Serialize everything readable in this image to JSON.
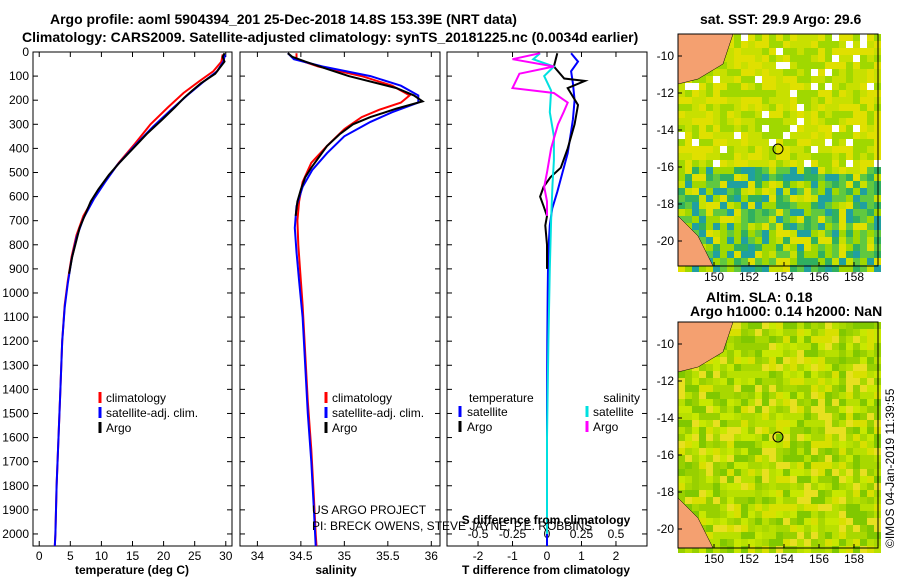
{
  "title_line1": "Argo profile: aoml 5904394_201 25-Dec-2018 14.8S 153.39E (NRT data)",
  "title_line2": "Climatology: CARS2009. Satellite-adjusted climatology: synTS_20181225.nc (0.0034d earlier)",
  "colors": {
    "climatology": "#ff0000",
    "satellite": "#0000ff",
    "argo": "#000000",
    "cyan": "#00e0e0",
    "magenta": "#ff00ff"
  },
  "chart_data": [
    {
      "type": "line",
      "id": "temperature",
      "xlabel": "temperature (deg C)",
      "xlim": [
        -1,
        31
      ],
      "xticks": [
        0,
        5,
        10,
        15,
        20,
        25,
        30
      ],
      "ylim": [
        2050,
        0
      ],
      "yticks": [
        0,
        100,
        200,
        300,
        400,
        500,
        600,
        700,
        800,
        900,
        1000,
        1100,
        1200,
        1300,
        1400,
        1500,
        1600,
        1700,
        1800,
        1900,
        2000
      ],
      "legend": [
        "climatology",
        "satellite-adj. clim.",
        "Argo"
      ],
      "series": [
        {
          "name": "climatology",
          "color": "#ff0000",
          "points": [
            [
              29.5,
              10
            ],
            [
              29.3,
              40
            ],
            [
              28.0,
              80
            ],
            [
              25.8,
              120
            ],
            [
              23.2,
              170
            ],
            [
              20.7,
              230
            ],
            [
              17.9,
              300
            ],
            [
              15.4,
              380
            ],
            [
              12.8,
              460
            ],
            [
              10.8,
              530
            ],
            [
              8.9,
              600
            ],
            [
              7.1,
              680
            ],
            [
              6.0,
              760
            ],
            [
              5.2,
              850
            ],
            [
              4.6,
              950
            ],
            [
              4.1,
              1050
            ],
            [
              3.7,
              1200
            ],
            [
              3.4,
              1400
            ],
            [
              3.1,
              1600
            ],
            [
              2.8,
              1800
            ],
            [
              2.6,
              2000
            ],
            [
              2.5,
              2050
            ]
          ]
        },
        {
          "name": "satellite-adj. clim.",
          "color": "#0000ff",
          "points": [
            [
              29.9,
              10
            ],
            [
              29.6,
              40
            ],
            [
              28.6,
              80
            ],
            [
              26.6,
              120
            ],
            [
              23.8,
              180
            ],
            [
              21.2,
              240
            ],
            [
              18.3,
              310
            ],
            [
              15.3,
              390
            ],
            [
              12.5,
              470
            ],
            [
              10.6,
              540
            ],
            [
              8.8,
              610
            ],
            [
              7.1,
              690
            ],
            [
              6.0,
              770
            ],
            [
              5.2,
              860
            ],
            [
              4.6,
              960
            ],
            [
              4.1,
              1060
            ],
            [
              3.7,
              1200
            ],
            [
              3.4,
              1400
            ],
            [
              3.1,
              1600
            ],
            [
              2.8,
              1800
            ],
            [
              2.6,
              2000
            ],
            [
              2.5,
              2050
            ]
          ]
        },
        {
          "name": "Argo",
          "color": "#000000",
          "points": [
            [
              29.8,
              5
            ],
            [
              29.5,
              20
            ],
            [
              29.8,
              40
            ],
            [
              28.3,
              90
            ],
            [
              26.0,
              130
            ],
            [
              24.6,
              160
            ],
            [
              23.3,
              190
            ],
            [
              21.8,
              230
            ],
            [
              19.8,
              280
            ],
            [
              17.3,
              340
            ],
            [
              15.1,
              400
            ],
            [
              12.9,
              460
            ],
            [
              11.2,
              510
            ],
            [
              9.5,
              570
            ],
            [
              8.3,
              620
            ],
            [
              7.3,
              680
            ],
            [
              6.5,
              730
            ],
            [
              5.9,
              790
            ],
            [
              5.3,
              850
            ],
            [
              4.8,
              920
            ]
          ]
        }
      ]
    },
    {
      "type": "line",
      "id": "salinity",
      "xlabel": "salinity",
      "xlim": [
        33.8,
        36.1
      ],
      "xticks": [
        34,
        34.5,
        35,
        35.5,
        36
      ],
      "ylim": [
        2050,
        0
      ],
      "legend": [
        "climatology",
        "satellite-adj. clim.",
        "Argo"
      ],
      "series": [
        {
          "name": "climatology",
          "color": "#ff0000",
          "points": [
            [
              34.45,
              5
            ],
            [
              34.45,
              30
            ],
            [
              34.7,
              60
            ],
            [
              35.2,
              100
            ],
            [
              35.55,
              140
            ],
            [
              35.75,
              180
            ],
            [
              35.65,
              210
            ],
            [
              35.4,
              240
            ],
            [
              35.2,
              270
            ],
            [
              35.0,
              320
            ],
            [
              34.8,
              390
            ],
            [
              34.62,
              460
            ],
            [
              34.52,
              540
            ],
            [
              34.48,
              620
            ],
            [
              34.46,
              700
            ],
            [
              34.47,
              800
            ],
            [
              34.49,
              900
            ],
            [
              34.52,
              1050
            ],
            [
              34.55,
              1250
            ],
            [
              34.58,
              1450
            ],
            [
              34.62,
              1650
            ],
            [
              34.65,
              1850
            ],
            [
              34.67,
              2000
            ],
            [
              34.68,
              2050
            ]
          ]
        },
        {
          "name": "satellite-adj. clim.",
          "color": "#0000ff",
          "points": [
            [
              34.35,
              5
            ],
            [
              34.42,
              30
            ],
            [
              34.75,
              60
            ],
            [
              35.3,
              100
            ],
            [
              35.65,
              140
            ],
            [
              35.85,
              180
            ],
            [
              35.85,
              210
            ],
            [
              35.55,
              250
            ],
            [
              35.3,
              290
            ],
            [
              35.0,
              350
            ],
            [
              34.8,
              420
            ],
            [
              34.63,
              490
            ],
            [
              34.52,
              560
            ],
            [
              34.45,
              640
            ],
            [
              34.43,
              730
            ],
            [
              34.45,
              830
            ],
            [
              34.48,
              950
            ],
            [
              34.52,
              1100
            ],
            [
              34.55,
              1300
            ],
            [
              34.58,
              1500
            ],
            [
              34.62,
              1700
            ],
            [
              34.65,
              1900
            ],
            [
              34.67,
              2050
            ]
          ]
        },
        {
          "name": "Argo",
          "color": "#000000",
          "points": [
            [
              34.35,
              5
            ],
            [
              34.4,
              20
            ],
            [
              34.55,
              40
            ],
            [
              34.8,
              70
            ],
            [
              35.05,
              100
            ],
            [
              35.6,
              150
            ],
            [
              35.8,
              180
            ],
            [
              35.9,
              205
            ],
            [
              35.6,
              235
            ],
            [
              35.3,
              270
            ],
            [
              35.1,
              300
            ],
            [
              34.95,
              340
            ],
            [
              34.8,
              390
            ],
            [
              34.7,
              440
            ],
            [
              34.62,
              480
            ],
            [
              34.55,
              520
            ],
            [
              34.5,
              570
            ],
            [
              34.46,
              620
            ],
            [
              34.44,
              680
            ]
          ]
        }
      ]
    },
    {
      "type": "line",
      "id": "difference",
      "xlabel": "T difference from climatology",
      "xlabel2": "S difference from climatology",
      "xlim": [
        -2.9,
        2.9
      ],
      "xticks": [
        -2,
        -1,
        0,
        1,
        2
      ],
      "xticks_top": [
        -0.5,
        -0.25,
        0,
        0.25,
        0.5
      ],
      "xticklabels_top": [
        "-0.5",
        "-0.25",
        "0",
        "0.25",
        "0.5"
      ],
      "ylim": [
        2050,
        0
      ],
      "legend_left_title": "temperature",
      "legend_right_title": "salinity",
      "legend_left": [
        "satellite",
        "Argo"
      ],
      "legend_right": [
        "satellite",
        "Argo"
      ],
      "series": [
        {
          "name": "T satellite",
          "color": "#0000ff",
          "points": [
            [
              0.7,
              5
            ],
            [
              0.9,
              40
            ],
            [
              0.7,
              80
            ],
            [
              0.75,
              130
            ],
            [
              0.8,
              200
            ],
            [
              0.75,
              280
            ],
            [
              0.7,
              330
            ],
            [
              0.6,
              420
            ],
            [
              0.45,
              500
            ],
            [
              0.3,
              580
            ],
            [
              0.15,
              650
            ],
            [
              0.08,
              720
            ],
            [
              0.05,
              800
            ],
            [
              0.03,
              900
            ],
            [
              0.02,
              1000
            ],
            [
              0.01,
              1200
            ],
            [
              0.0,
              1500
            ],
            [
              0.0,
              2050
            ]
          ]
        },
        {
          "name": "T Argo",
          "color": "#000000",
          "points": [
            [
              0.3,
              5
            ],
            [
              0.2,
              60
            ],
            [
              0.5,
              110
            ],
            [
              1.1,
              120
            ],
            [
              0.6,
              150
            ],
            [
              0.9,
              220
            ],
            [
              0.8,
              300
            ],
            [
              0.6,
              400
            ],
            [
              0.4,
              480
            ],
            [
              0.1,
              520
            ],
            [
              -0.1,
              560
            ],
            [
              -0.2,
              600
            ],
            [
              -0.1,
              640
            ],
            [
              0.0,
              680
            ],
            [
              -0.05,
              720
            ],
            [
              0.0,
              800
            ],
            [
              0.0,
              900
            ]
          ]
        },
        {
          "name": "S satellite",
          "color": "#00e0e0",
          "points": [
            [
              -0.05,
              5
            ],
            [
              -0.1,
              30
            ],
            [
              0.05,
              60
            ],
            [
              -0.02,
              100
            ],
            [
              0.03,
              160
            ],
            [
              0.02,
              250
            ],
            [
              0.05,
              350
            ],
            [
              0.05,
              450
            ],
            [
              0.04,
              550
            ],
            [
              0.03,
              700
            ],
            [
              0.02,
              900
            ],
            [
              0.01,
              1200
            ],
            [
              0.0,
              1600
            ],
            [
              0.0,
              2000
            ]
          ]
        },
        {
          "name": "S Argo",
          "color": "#ff00ff",
          "points": [
            [
              -0.05,
              5
            ],
            [
              -0.25,
              30
            ],
            [
              0.05,
              60
            ],
            [
              -0.2,
              90
            ],
            [
              -0.25,
              150
            ],
            [
              0.05,
              170
            ],
            [
              0.15,
              210
            ],
            [
              0.12,
              250
            ],
            [
              0.08,
              300
            ],
            [
              0.03,
              400
            ],
            [
              0.0,
              500
            ],
            [
              -0.02,
              560
            ],
            [
              0.0,
              620
            ],
            [
              0.0,
              680
            ]
          ]
        }
      ]
    }
  ],
  "sst_map": {
    "title": "sat. SST: 29.9 Argo: 29.6",
    "xticks": [
      "150",
      "152",
      "154",
      "156",
      "158"
    ],
    "yticks": [
      "-10",
      "-12",
      "-14",
      "-16",
      "-18",
      "-20"
    ]
  },
  "sla_map": {
    "title_line1": "Altim. SLA: 0.18",
    "title_line2": "Argo h1000: 0.14 h2000: NaN",
    "xticks": [
      "150",
      "152",
      "154",
      "156",
      "158"
    ],
    "yticks": [
      "-10",
      "-12",
      "-14",
      "-16",
      "-18",
      "-20"
    ]
  },
  "credits": {
    "line1": "US ARGO PROJECT",
    "line2": "PI: BRECK OWENS, STEVE JAYNE, P.E. ROBBINS"
  },
  "imos_stamp": "©IMOS 04-Jan-2019 11:39:55"
}
